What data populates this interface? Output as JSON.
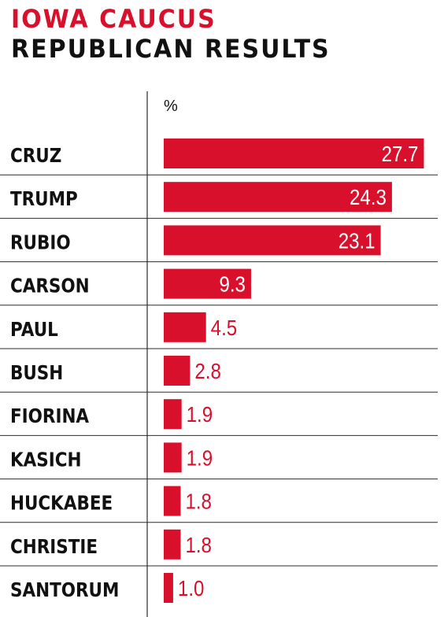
{
  "header": {
    "title_line1": "IOWA CAUCUS",
    "title_line2": "REPUBLICAN RESULTS",
    "unit_label": "%"
  },
  "colors": {
    "accent": "#d8102c",
    "text": "#111111",
    "divider": "#2b2b2b",
    "bar_label_inside": "#ffffff"
  },
  "chart_data": {
    "type": "bar",
    "orientation": "horizontal",
    "title": "IOWA CAUCUS REPUBLICAN RESULTS",
    "xlabel": "%",
    "ylabel": "",
    "grid": false,
    "legend": "none",
    "xlim": [
      0,
      28.5
    ],
    "categories": [
      "CRUZ",
      "TRUMP",
      "RUBIO",
      "CARSON",
      "PAUL",
      "BUSH",
      "FIORINA",
      "KASICH",
      "HUCKABEE",
      "CHRISTIE",
      "SANTORUM"
    ],
    "values": [
      27.7,
      24.3,
      23.1,
      9.3,
      4.5,
      2.8,
      1.9,
      1.9,
      1.8,
      1.8,
      1.0
    ],
    "value_labels": [
      "27.7",
      "24.3",
      "23.1",
      "9.3",
      "4.5",
      "2.8",
      "1.9",
      "1.9",
      "1.8",
      "1.8",
      "1.0"
    ]
  }
}
